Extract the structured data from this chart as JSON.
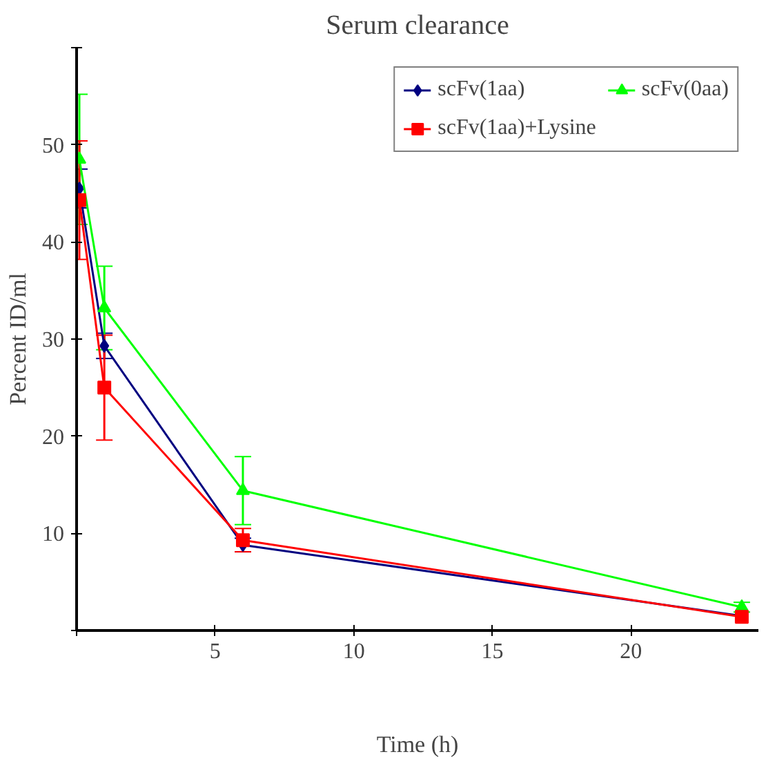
{
  "chart_data": {
    "type": "line",
    "title": "Serum clearance",
    "xlabel": "Time (h)",
    "ylabel": "Percent ID/ml",
    "x": [
      0.1,
      1,
      6,
      24
    ],
    "series": [
      {
        "name": "scFv(1aa)",
        "color": "#000080",
        "marker": "diamond",
        "values": [
          45.5,
          29.3,
          8.8,
          1.5
        ],
        "errors": [
          2,
          1.3,
          0.7,
          null
        ]
      },
      {
        "name": "scFv(0aa)",
        "color": "#00ff00",
        "marker": "triangle",
        "values": [
          48.5,
          33.2,
          14.4,
          2.4
        ],
        "errors": [
          6.7,
          4.3,
          3.5,
          0.5
        ]
      },
      {
        "name": "scFv(1aa)+Lysine",
        "color": "#ff0000",
        "marker": "square",
        "values": [
          44.3,
          25.0,
          9.3,
          1.4
        ],
        "errors": [
          6.1,
          5.4,
          1.2,
          null
        ]
      }
    ],
    "xlim": [
      0,
      24.6
    ],
    "ylim": [
      0,
      60
    ],
    "xticks": [
      {
        "value": 0,
        "label": null
      },
      5,
      10,
      15,
      20
    ],
    "yticks": [
      {
        "value": 0,
        "label": null
      },
      10,
      20,
      30,
      40,
      50,
      {
        "value": 60,
        "label": null
      }
    ],
    "grid": false,
    "legend": "top right",
    "line_style": "solid"
  }
}
